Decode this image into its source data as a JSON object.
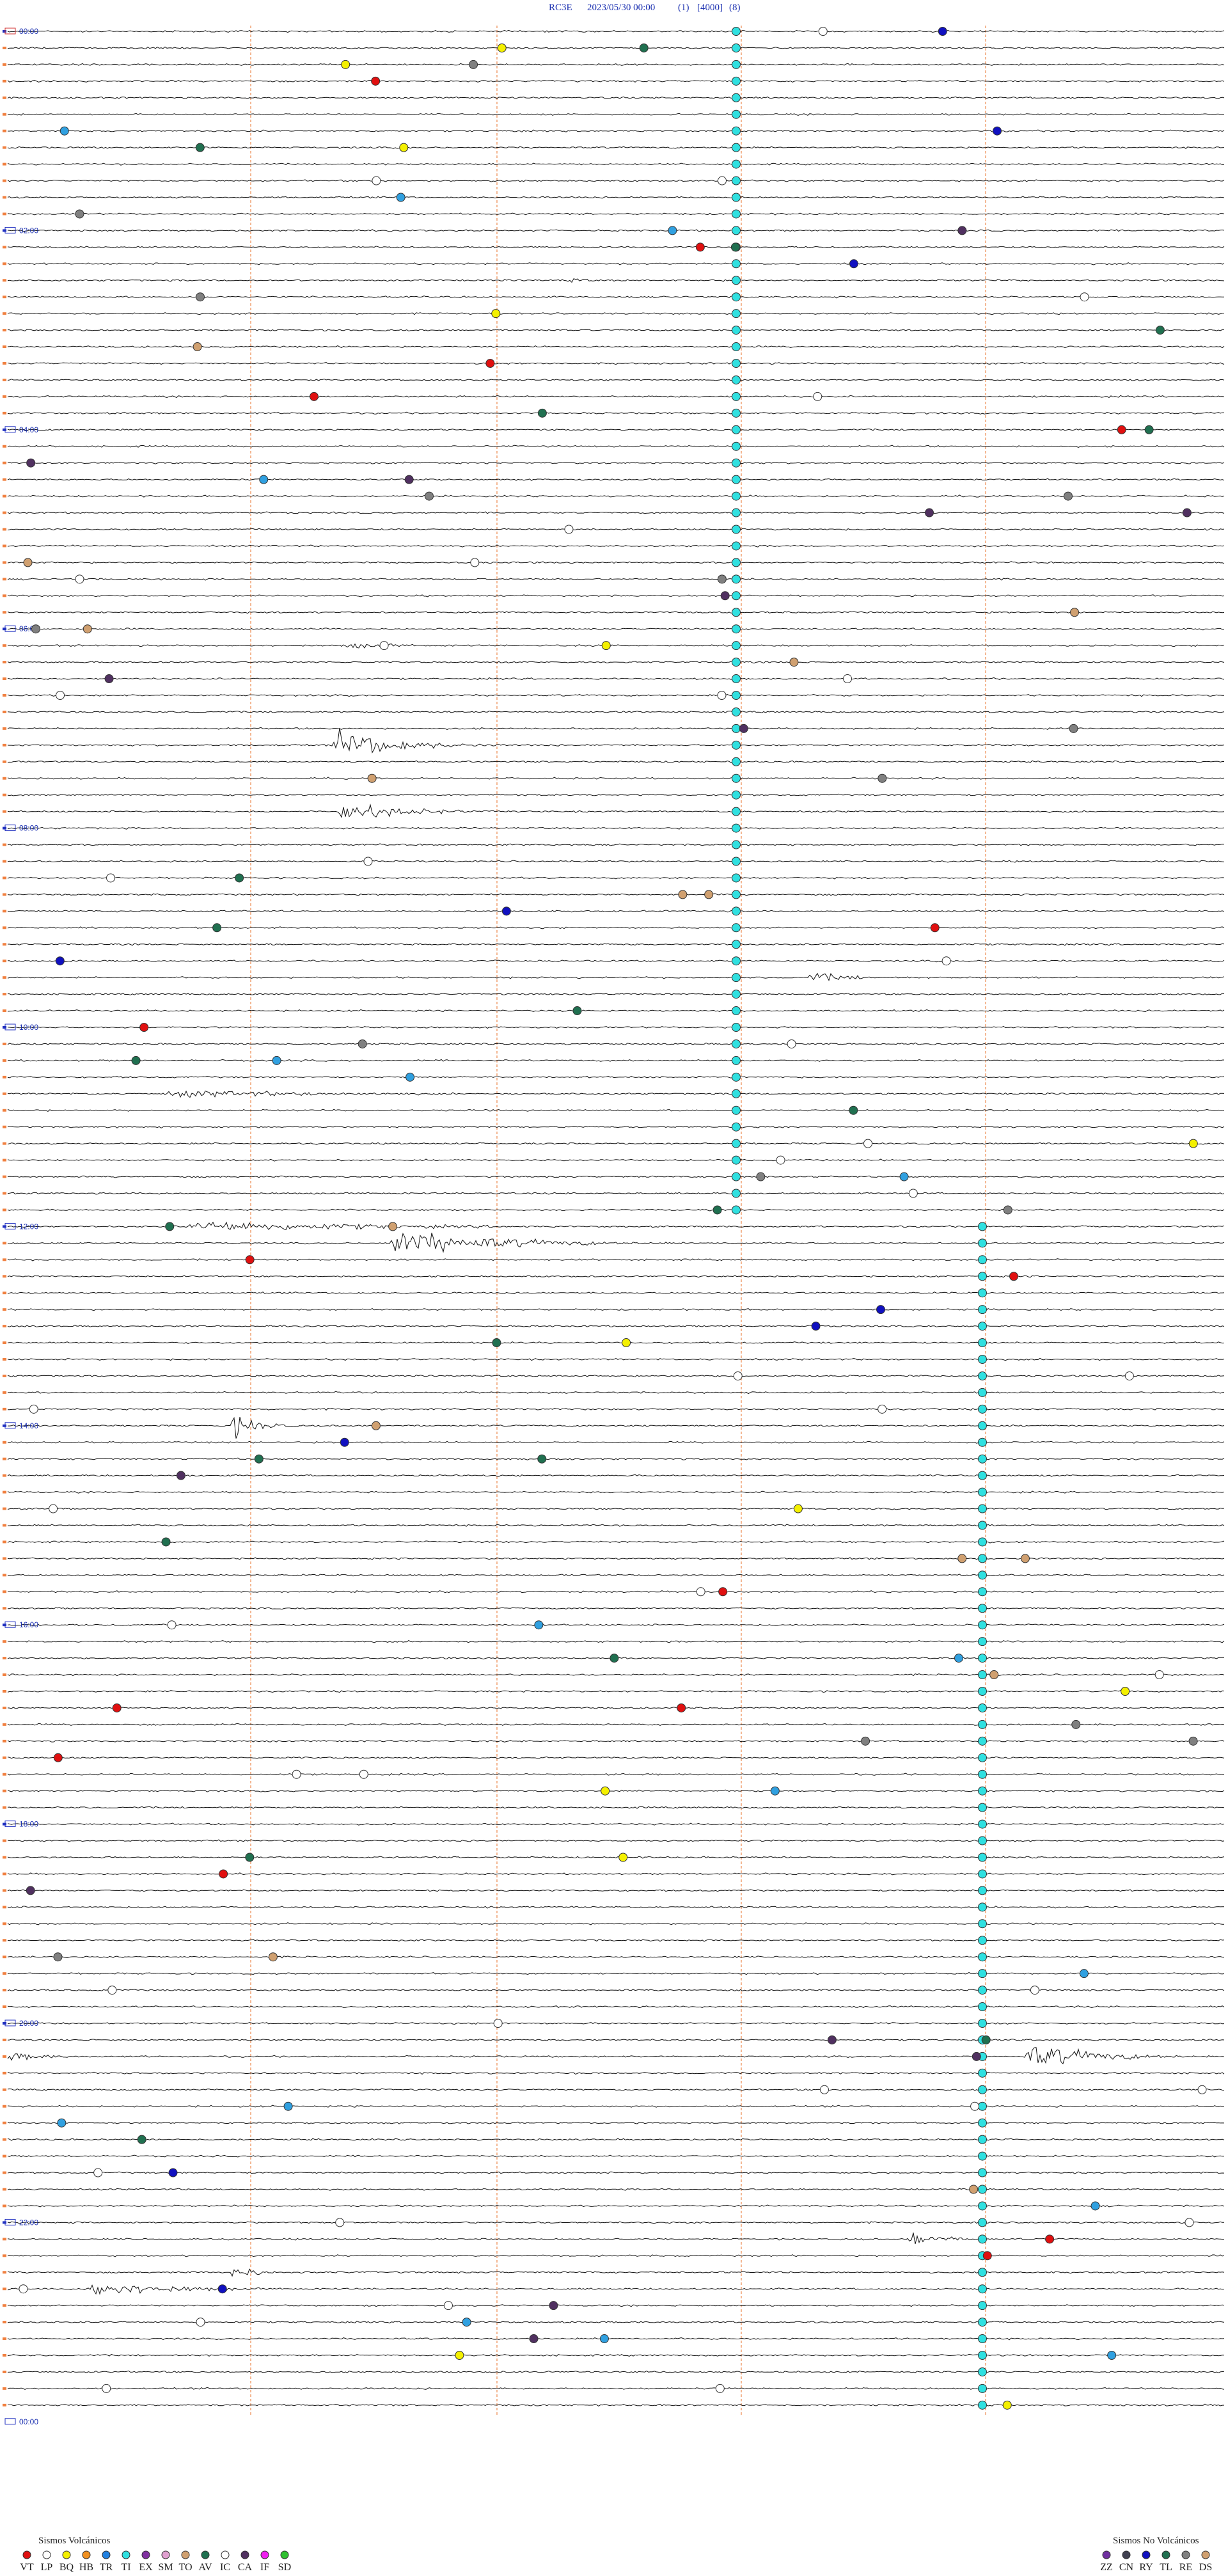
{
  "header": {
    "station": "RC3E",
    "datetime": "2023/05/30 00:00",
    "channel": "(1)",
    "gain": "[4000]",
    "scale": "(8)"
  },
  "hour_labels": [
    "00:00",
    "02:00",
    "04:00",
    "06:00",
    "08:00",
    "10:00",
    "12:00",
    "14:00",
    "16:00",
    "18:00",
    "20:00",
    "22:00",
    "00:00"
  ],
  "legend": {
    "volcanic": {
      "title": "Sismos Volcánicos",
      "items": [
        {
          "label": "VT",
          "color": "#e01010"
        },
        {
          "label": "LP",
          "color": "#ffffff"
        },
        {
          "label": "BQ",
          "color": "#f4f000"
        },
        {
          "label": "HB",
          "color": "#f09020"
        },
        {
          "label": "TR",
          "color": "#2080e0"
        },
        {
          "label": "TI",
          "color": "#30e0e0"
        },
        {
          "label": "EX",
          "color": "#8030a0"
        },
        {
          "label": "SM",
          "color": "#e0a0d0"
        },
        {
          "label": "TO",
          "color": "#d0a070"
        },
        {
          "label": "AV",
          "color": "#207050"
        },
        {
          "label": "IC",
          "color": "#ffffff"
        },
        {
          "label": "CA",
          "color": "#503060"
        },
        {
          "label": "IF",
          "color": "#f020f0"
        },
        {
          "label": "SD",
          "color": "#30c030"
        }
      ]
    },
    "non_volcanic": {
      "title": "Sismos No Volcánicos",
      "items": [
        {
          "label": "ZZ",
          "color": "#7030a0"
        },
        {
          "label": "CN",
          "color": "#404050"
        },
        {
          "label": "RY",
          "color": "#1010c0"
        },
        {
          "label": "TL",
          "color": "#207050"
        },
        {
          "label": "RE",
          "color": "#808080"
        },
        {
          "label": "DS",
          "color": "#d0a070"
        }
      ]
    }
  }
}
